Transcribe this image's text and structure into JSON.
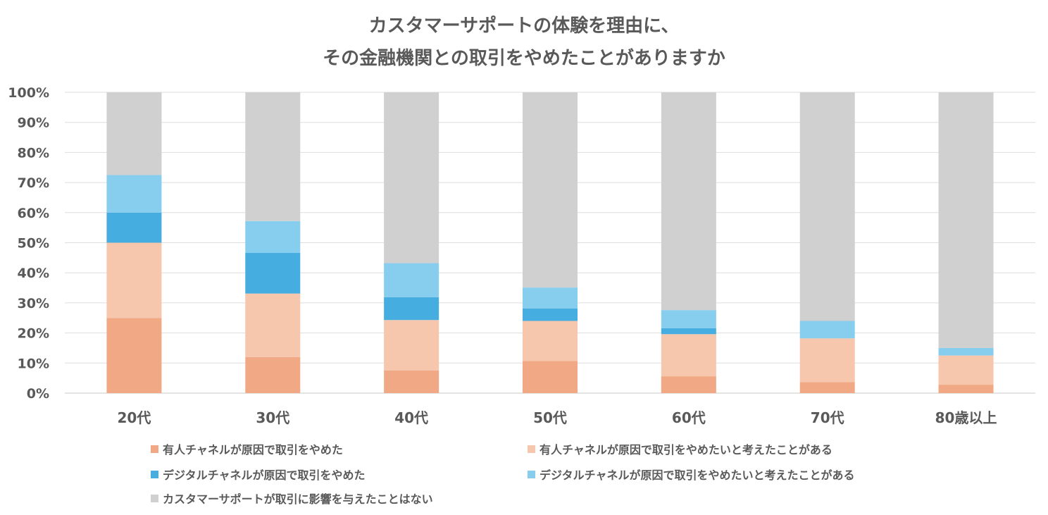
{
  "chart_data": {
    "type": "bar",
    "stacked": true,
    "title_line1": "カスタマーサポートの体験を理由に、",
    "title_line2": "その金融機関との取引をやめたことがありますか",
    "categories": [
      "20代",
      "30代",
      "40代",
      "50代",
      "60代",
      "70代",
      "80歳以上"
    ],
    "y_ticks": [
      "0%",
      "10%",
      "20%",
      "30%",
      "40%",
      "50%",
      "60%",
      "70%",
      "80%",
      "90%",
      "100%"
    ],
    "ylim": [
      0,
      100
    ],
    "series": [
      {
        "name": "有人チャネルが原因で取引をやめた",
        "color": "#f0a984",
        "values": [
          25,
          12,
          7.5,
          10.7,
          5.6,
          3.7,
          2.8
        ]
      },
      {
        "name": "有人チャネルが原因で取引をやめたいと考えたことがある",
        "color": "#f6c6ad",
        "values": [
          25,
          21.1,
          16.8,
          13.3,
          14,
          14.5,
          9.7
        ]
      },
      {
        "name": "デジタルチャネルが原因で取引をやめた",
        "color": "#45ade0",
        "values": [
          10,
          13.5,
          7.6,
          4.1,
          2,
          0,
          0
        ]
      },
      {
        "name": "デジタルチャネルが原因で取引をやめたいと考えたことがある",
        "color": "#87cdee",
        "values": [
          12.5,
          10.6,
          11.3,
          7,
          6,
          5.8,
          2.5
        ]
      },
      {
        "name": "カスタマーサポートが取引に影響を与えたことはない",
        "color": "#d0d0d0",
        "values": [
          27.5,
          42.8,
          56.8,
          64.9,
          72.4,
          76,
          85
        ]
      }
    ],
    "legend_position": "bottom"
  }
}
